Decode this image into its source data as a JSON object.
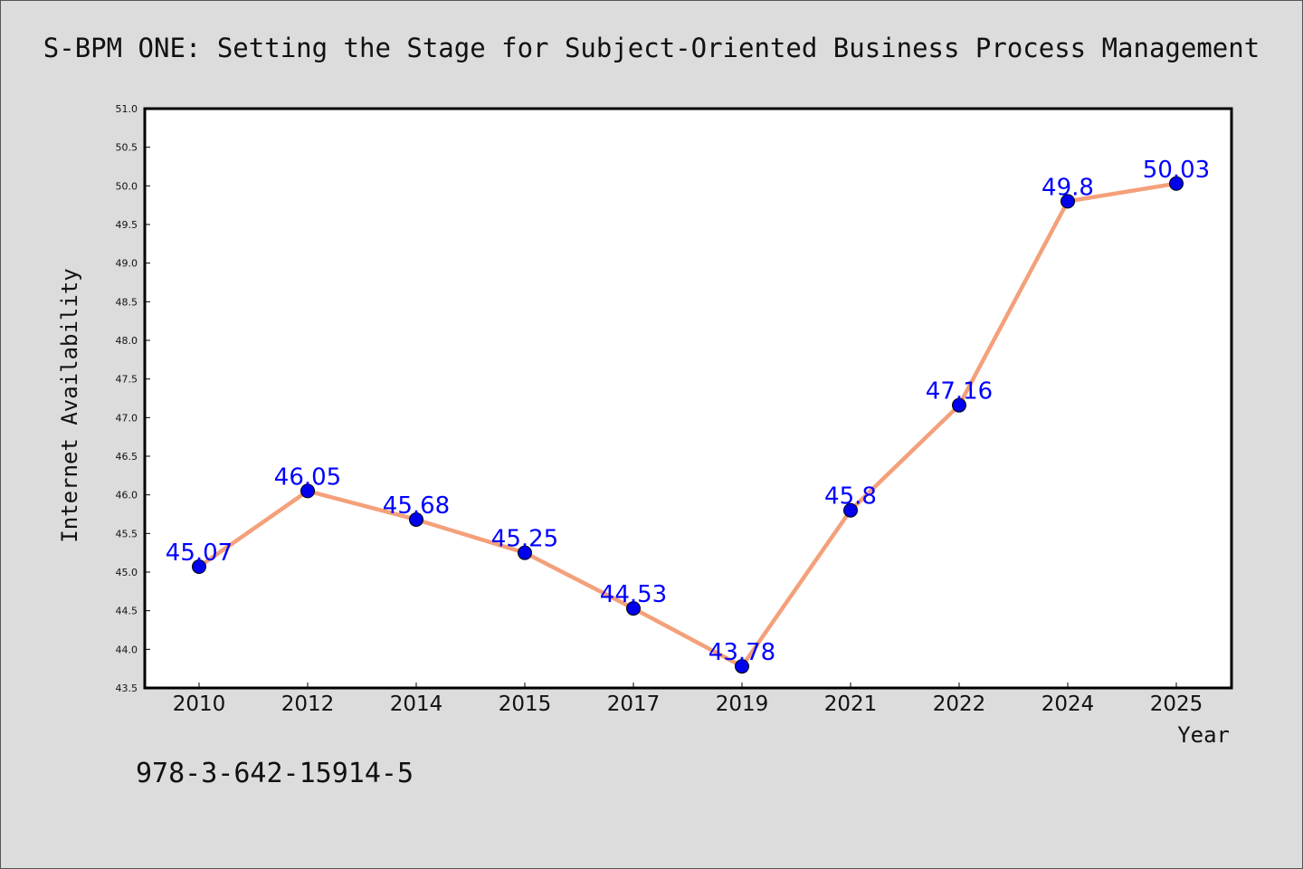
{
  "chart_data": {
    "type": "line",
    "title": "S-BPM ONE: Setting the Stage for Subject-Oriented Business Process Management",
    "xlabel": "Year",
    "ylabel": "Internet Availability",
    "categories": [
      "2010",
      "2012",
      "2014",
      "2015",
      "2017",
      "2019",
      "2021",
      "2022",
      "2024",
      "2025"
    ],
    "values": [
      45.07,
      46.05,
      45.68,
      45.25,
      44.53,
      43.78,
      45.8,
      47.16,
      49.8,
      50.03
    ],
    "data_labels": [
      "45.07",
      "46.05",
      "45.68",
      "45.25",
      "44.53",
      "43.78",
      "45.8",
      "47.16",
      "49.8",
      "50.03"
    ],
    "ylim": [
      43.5,
      51.0
    ],
    "yticks": [
      "43.5",
      "44.0",
      "44.5",
      "45.0",
      "45.5",
      "46.0",
      "46.5",
      "47.0",
      "47.5",
      "48.0",
      "48.5",
      "49.0",
      "49.5",
      "50.0",
      "50.5",
      "51.0"
    ],
    "grid": false,
    "legend": "none",
    "line_color": "#f4a07a",
    "marker_color": "#0000ee",
    "label_color": "#0000ff"
  },
  "footer": {
    "isbn": "978-3-642-15914-5"
  }
}
